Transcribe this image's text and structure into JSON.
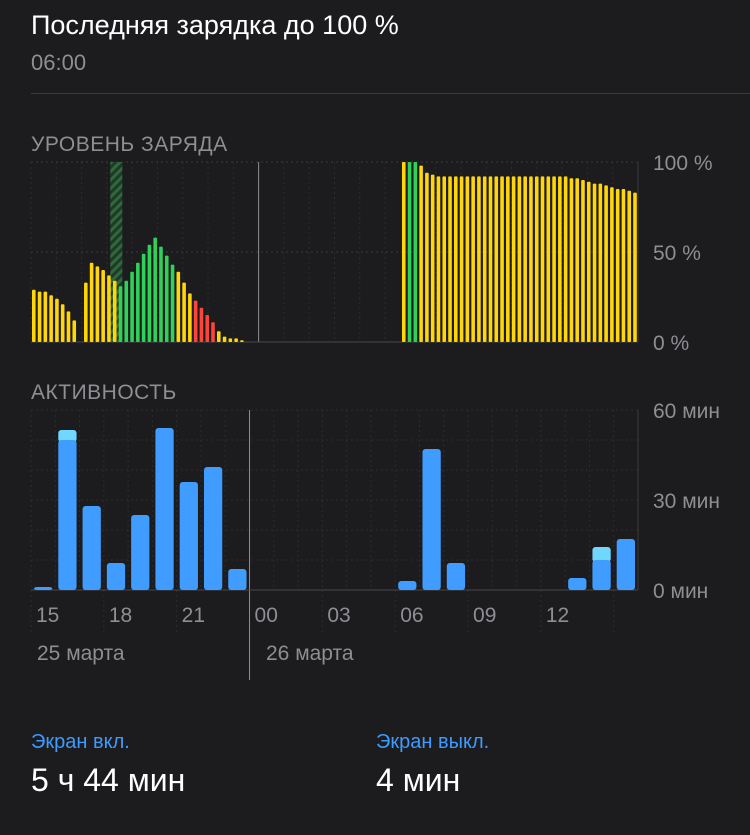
{
  "header": {
    "title": "Последняя зарядка до 100 %",
    "time": "06:00"
  },
  "battery_section": {
    "title": "УРОВЕНЬ ЗАРЯДА"
  },
  "activity_section": {
    "title": "АКТИВНОСТЬ"
  },
  "stats": {
    "screen_on_label": "Экран вкл.",
    "screen_on_value": "5 ч 44 мин",
    "screen_off_label": "Экран выкл.",
    "screen_off_value": "4 мин"
  },
  "colors": {
    "background": "#1c1c1e",
    "grid": "#3a3a3c",
    "text_secondary": "#8e8e93",
    "accent_blue": "#3d9bff",
    "battery_yellow": "#ffd60a",
    "battery_green": "#30d158",
    "battery_red": "#ff453a",
    "activity_blue": "#409cff",
    "activity_light": "#70d7ff"
  },
  "chart_data": [
    {
      "type": "bar",
      "name": "battery_level",
      "y_ticks": [
        "100 %",
        "50 %",
        "0 %"
      ],
      "ylim": [
        0,
        100
      ],
      "bars": [
        {
          "slot": 0,
          "value": 29,
          "state": "normal"
        },
        {
          "slot": 1,
          "value": 28,
          "state": "normal"
        },
        {
          "slot": 2,
          "value": 28,
          "state": "normal"
        },
        {
          "slot": 3,
          "value": 26,
          "state": "normal"
        },
        {
          "slot": 4,
          "value": 24,
          "state": "normal"
        },
        {
          "slot": 5,
          "value": 21,
          "state": "normal"
        },
        {
          "slot": 6,
          "value": 17,
          "state": "normal"
        },
        {
          "slot": 7,
          "value": 12,
          "state": "normal"
        },
        {
          "slot": 9,
          "value": 33,
          "state": "normal"
        },
        {
          "slot": 10,
          "value": 44,
          "state": "normal"
        },
        {
          "slot": 11,
          "value": 42,
          "state": "normal"
        },
        {
          "slot": 12,
          "value": 40,
          "state": "normal"
        },
        {
          "slot": 13,
          "value": 37,
          "state": "normal"
        },
        {
          "slot": 14,
          "value": 34,
          "state": "normal"
        },
        {
          "slot": 15,
          "value": 31,
          "state": "charging"
        },
        {
          "slot": 16,
          "value": 34,
          "state": "charging"
        },
        {
          "slot": 17,
          "value": 39,
          "state": "charging"
        },
        {
          "slot": 18,
          "value": 44,
          "state": "charging"
        },
        {
          "slot": 19,
          "value": 49,
          "state": "charging"
        },
        {
          "slot": 20,
          "value": 54,
          "state": "charging"
        },
        {
          "slot": 21,
          "value": 58,
          "state": "charging"
        },
        {
          "slot": 22,
          "value": 53,
          "state": "charging"
        },
        {
          "slot": 23,
          "value": 48,
          "state": "charging"
        },
        {
          "slot": 24,
          "value": 43,
          "state": "charging"
        },
        {
          "slot": 25,
          "value": 39,
          "state": "normal"
        },
        {
          "slot": 26,
          "value": 33,
          "state": "normal"
        },
        {
          "slot": 27,
          "value": 27,
          "state": "normal"
        },
        {
          "slot": 28,
          "value": 23,
          "state": "low"
        },
        {
          "slot": 29,
          "value": 19,
          "state": "low"
        },
        {
          "slot": 30,
          "value": 15,
          "state": "low"
        },
        {
          "slot": 31,
          "value": 11,
          "state": "low"
        },
        {
          "slot": 32,
          "value": 6,
          "state": "normal"
        },
        {
          "slot": 33,
          "value": 3,
          "state": "normal"
        },
        {
          "slot": 34,
          "value": 2,
          "state": "normal"
        },
        {
          "slot": 35,
          "value": 2,
          "state": "normal"
        },
        {
          "slot": 36,
          "value": 1,
          "state": "normal"
        },
        {
          "slot": 64,
          "value": 100,
          "state": "normal"
        },
        {
          "slot": 65,
          "value": 100,
          "state": "charging"
        },
        {
          "slot": 66,
          "value": 100,
          "state": "charging"
        },
        {
          "slot": 67,
          "value": 98,
          "state": "normal"
        },
        {
          "slot": 68,
          "value": 94,
          "state": "normal"
        },
        {
          "slot": 69,
          "value": 93,
          "state": "normal"
        },
        {
          "slot": 70,
          "value": 92,
          "state": "normal"
        },
        {
          "slot": 71,
          "value": 92,
          "state": "normal"
        },
        {
          "slot": 72,
          "value": 92,
          "state": "normal"
        },
        {
          "slot": 73,
          "value": 92,
          "state": "normal"
        },
        {
          "slot": 74,
          "value": 92,
          "state": "normal"
        },
        {
          "slot": 75,
          "value": 92,
          "state": "normal"
        },
        {
          "slot": 76,
          "value": 92,
          "state": "normal"
        },
        {
          "slot": 77,
          "value": 92,
          "state": "normal"
        },
        {
          "slot": 78,
          "value": 92,
          "state": "normal"
        },
        {
          "slot": 79,
          "value": 92,
          "state": "normal"
        },
        {
          "slot": 80,
          "value": 92,
          "state": "normal"
        },
        {
          "slot": 81,
          "value": 92,
          "state": "normal"
        },
        {
          "slot": 82,
          "value": 92,
          "state": "normal"
        },
        {
          "slot": 83,
          "value": 92,
          "state": "normal"
        },
        {
          "slot": 84,
          "value": 92,
          "state": "normal"
        },
        {
          "slot": 85,
          "value": 92,
          "state": "normal"
        },
        {
          "slot": 86,
          "value": 92,
          "state": "normal"
        },
        {
          "slot": 87,
          "value": 92,
          "state": "normal"
        },
        {
          "slot": 88,
          "value": 92,
          "state": "normal"
        },
        {
          "slot": 89,
          "value": 92,
          "state": "normal"
        },
        {
          "slot": 90,
          "value": 92,
          "state": "normal"
        },
        {
          "slot": 91,
          "value": 92,
          "state": "normal"
        },
        {
          "slot": 92,
          "value": 92,
          "state": "normal"
        },
        {
          "slot": 93,
          "value": 91,
          "state": "normal"
        },
        {
          "slot": 94,
          "value": 91,
          "state": "normal"
        },
        {
          "slot": 95,
          "value": 90,
          "state": "normal"
        },
        {
          "slot": 96,
          "value": 89,
          "state": "normal"
        },
        {
          "slot": 97,
          "value": 88,
          "state": "normal"
        },
        {
          "slot": 98,
          "value": 88,
          "state": "normal"
        },
        {
          "slot": 99,
          "value": 87,
          "state": "normal"
        },
        {
          "slot": 100,
          "value": 86,
          "state": "normal"
        },
        {
          "slot": 101,
          "value": 85,
          "state": "normal"
        },
        {
          "slot": 102,
          "value": 85,
          "state": "normal"
        },
        {
          "slot": 103,
          "value": 84,
          "state": "normal"
        },
        {
          "slot": 104,
          "value": 83,
          "state": "normal"
        }
      ],
      "charging_window_slots": [
        10,
        12
      ]
    },
    {
      "type": "bar",
      "name": "activity",
      "y_ticks": [
        "60 мин",
        "30 мин",
        "0 мин"
      ],
      "ylim": [
        0,
        60
      ],
      "x_ticks": [
        "15",
        "18",
        "21",
        "00",
        "03",
        "06",
        "09",
        "12"
      ],
      "date_labels": [
        "25 марта",
        "26 марта"
      ],
      "bars": [
        {
          "hour": 0,
          "screen_on": 1,
          "screen_off": 0
        },
        {
          "hour": 1,
          "screen_on": 50,
          "screen_off": 3
        },
        {
          "hour": 2,
          "screen_on": 28,
          "screen_off": 0
        },
        {
          "hour": 3,
          "screen_on": 9,
          "screen_off": 0
        },
        {
          "hour": 4,
          "screen_on": 25,
          "screen_off": 0
        },
        {
          "hour": 5,
          "screen_on": 54,
          "screen_off": 0
        },
        {
          "hour": 6,
          "screen_on": 36,
          "screen_off": 0
        },
        {
          "hour": 7,
          "screen_on": 41,
          "screen_off": 0
        },
        {
          "hour": 8,
          "screen_on": 7,
          "screen_off": 0
        },
        {
          "hour": 15,
          "screen_on": 3,
          "screen_off": 0
        },
        {
          "hour": 16,
          "screen_on": 47,
          "screen_off": 0
        },
        {
          "hour": 17,
          "screen_on": 9,
          "screen_off": 0
        },
        {
          "hour": 22,
          "screen_on": 4,
          "screen_off": 0
        },
        {
          "hour": 23,
          "screen_on": 10,
          "screen_off": 4
        },
        {
          "hour": 24,
          "screen_on": 17,
          "screen_off": 0
        }
      ]
    }
  ]
}
